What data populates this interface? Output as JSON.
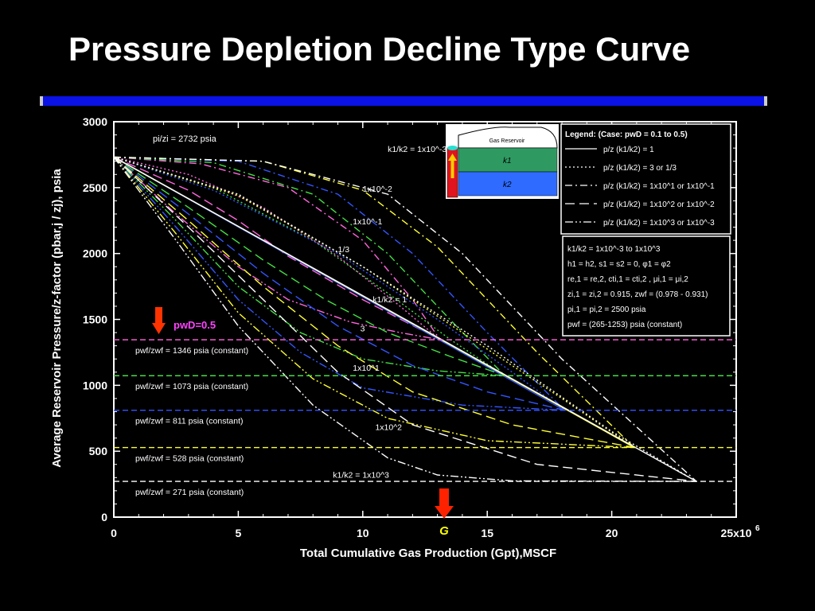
{
  "slide": {
    "title": "Pressure Depletion Decline Type Curve"
  },
  "chart_data": {
    "type": "line",
    "title": "Pressure Depletion Decline Type Curve",
    "xlabel": "Total Cumulative Gas Production (Gpt),MSCF",
    "ylabel": "Average Reservoir Pressure/z-factor (pbar,j / zj), psia",
    "x_unit_multiplier": "x10^6",
    "xlim": [
      0,
      25
    ],
    "ylim": [
      0,
      3000
    ],
    "x_ticks": [
      "0",
      "5",
      "10",
      "15",
      "20",
      "25x10"
    ],
    "x_tick_exponent": "6",
    "y_ticks": [
      "0",
      "500",
      "1000",
      "1500",
      "2000",
      "2500",
      "3000"
    ],
    "g_label": "G",
    "g_value": 13.2,
    "initial_label": "pi/zi = 2732 psia",
    "initial_value": 2732,
    "pwd_label": "pwD=0.5",
    "legend_header": "Legend:  (Case: pwD = 0.1 to 0.5)",
    "legend": [
      {
        "label": "p/z (k1/k2) = 1",
        "dash": "solid"
      },
      {
        "label": "p/z (k1/k2) = 3 or 1/3",
        "dash": "dotted"
      },
      {
        "label": "p/z (k1/k2) = 1x10^1  or 1x10^-1",
        "dash": "dashdot"
      },
      {
        "label": "p/z (k1/k2) = 1x10^2  or 1x10^-2",
        "dash": "dashed"
      },
      {
        "label": "p/z (k1/k2) = 1x10^3  or 1x10^-3",
        "dash": "dashdotdot"
      }
    ],
    "params": [
      "k1/k2 = 1x10^-3  to 1x10^3",
      "h1 = h2, s1 = s2 = 0, φ1 = φ2",
      "re,1 = re,2, cti,1 = cti,2 , μi,1 = μi,2",
      "zi,1 = zi,2 = 0.915, zwf = (0.978 - 0.931)",
      "pi,1 = pi,2 = 2500 psia",
      "pwf = (265-1253) psia (constant)"
    ],
    "inset": {
      "title": "Gas Reservoir",
      "layer1": "k1",
      "layer2": "k2"
    },
    "curve_labels": [
      {
        "text": "k1/k2 = 1x10^-3",
        "x": 11.0,
        "y": 2770
      },
      {
        "text": "1x10^-2",
        "x": 10.0,
        "y": 2470
      },
      {
        "text": "1x10^-1",
        "x": 9.6,
        "y": 2220
      },
      {
        "text": "1/3",
        "x": 9.0,
        "y": 2010
      },
      {
        "text": "k1/k2 = 1",
        "x": 10.4,
        "y": 1630
      },
      {
        "text": "3",
        "x": 9.9,
        "y": 1410
      },
      {
        "text": "1x10^1",
        "x": 9.6,
        "y": 1110
      },
      {
        "text": "1x10^2",
        "x": 10.5,
        "y": 660
      },
      {
        "text": "k1/k2 = 1x10^3",
        "x": 8.8,
        "y": 300
      }
    ],
    "pwf_levels": [
      {
        "label": "pwf/zwf = 1346 psia (constant)",
        "y": 1346,
        "color": "#ff66dd",
        "end_x": 13.1
      },
      {
        "label": "pwf/zwf = 1073 psia (constant)",
        "y": 1073,
        "color": "#44dd44",
        "end_x": 15.7
      },
      {
        "label": "pwf/zwf = 811 psia (constant)",
        "y": 811,
        "color": "#3355ff",
        "end_x": 18.1
      },
      {
        "label": "pwf/zwf = 528 psia (constant)",
        "y": 528,
        "color": "#ffff33",
        "end_x": 20.9
      },
      {
        "label": "pwf/zwf = 271 psia (constant)",
        "y": 271,
        "color": "#ffffff",
        "end_x": 23.4
      }
    ],
    "series": [
      {
        "group": 0,
        "dash": "solid",
        "x": [
          0,
          13.1
        ],
        "y": [
          2732,
          1346
        ]
      },
      {
        "group": 0,
        "dash": "dotted",
        "x": [
          0,
          3.0,
          6.0,
          9.0,
          11.5,
          13.1
        ],
        "y": [
          2732,
          2600,
          2350,
          1980,
          1600,
          1346
        ]
      },
      {
        "group": 0,
        "dash": "dashdot",
        "x": [
          0,
          3.5,
          7.0,
          10.0,
          12.0,
          13.1
        ],
        "y": [
          2732,
          2680,
          2500,
          2100,
          1650,
          1346
        ]
      },
      {
        "group": 0,
        "dash": "dashed",
        "x": [
          0,
          3.0,
          5.0,
          7.0,
          10.0,
          13.1
        ],
        "y": [
          2732,
          2480,
          2250,
          1980,
          1650,
          1346
        ]
      },
      {
        "group": 0,
        "dash": "dashdotdot",
        "x": [
          0,
          2.5,
          5.0,
          7.0,
          9.5,
          11.5,
          13.1
        ],
        "y": [
          2732,
          2300,
          1900,
          1650,
          1480,
          1400,
          1346
        ]
      },
      {
        "group": 1,
        "dash": "solid",
        "x": [
          0,
          15.7
        ],
        "y": [
          2732,
          1073
        ]
      },
      {
        "group": 1,
        "dash": "dotted",
        "x": [
          0,
          4.0,
          8.0,
          11.0,
          13.5,
          15.7
        ],
        "y": [
          2732,
          2500,
          2100,
          1700,
          1350,
          1073
        ]
      },
      {
        "group": 1,
        "dash": "dashdot",
        "x": [
          0,
          4.0,
          8.0,
          11.0,
          13.5,
          15.7
        ],
        "y": [
          2732,
          2690,
          2450,
          2000,
          1500,
          1073
        ]
      },
      {
        "group": 1,
        "dash": "dashed",
        "x": [
          0,
          3.0,
          6.0,
          8.5,
          11.0,
          13.5,
          15.7
        ],
        "y": [
          2732,
          2350,
          1950,
          1650,
          1400,
          1220,
          1073
        ]
      },
      {
        "group": 1,
        "dash": "dashdotdot",
        "x": [
          0,
          2.5,
          5.0,
          7.5,
          10.0,
          13.0,
          15.7
        ],
        "y": [
          2732,
          2250,
          1750,
          1400,
          1200,
          1110,
          1073
        ]
      },
      {
        "group": 2,
        "dash": "solid",
        "x": [
          0,
          18.1
        ],
        "y": [
          2732,
          811
        ]
      },
      {
        "group": 2,
        "dash": "dotted",
        "x": [
          0,
          4.0,
          9.0,
          13.0,
          16.0,
          18.1
        ],
        "y": [
          2732,
          2480,
          2000,
          1500,
          1100,
          811
        ]
      },
      {
        "group": 2,
        "dash": "dashdot",
        "x": [
          0,
          5.0,
          9.0,
          12.0,
          15.0,
          18.1
        ],
        "y": [
          2732,
          2700,
          2450,
          2000,
          1400,
          811
        ]
      },
      {
        "group": 2,
        "dash": "dashed",
        "x": [
          0,
          3.0,
          6.0,
          9.0,
          12.0,
          15.0,
          18.1
        ],
        "y": [
          2732,
          2300,
          1850,
          1450,
          1150,
          950,
          811
        ]
      },
      {
        "group": 2,
        "dash": "dashdotdot",
        "x": [
          0,
          2.5,
          5.0,
          7.5,
          10.0,
          14.0,
          18.1
        ],
        "y": [
          2732,
          2200,
          1650,
          1250,
          980,
          850,
          811
        ]
      },
      {
        "group": 3,
        "dash": "solid",
        "x": [
          0,
          20.9
        ],
        "y": [
          2732,
          528
        ]
      },
      {
        "group": 3,
        "dash": "dotted",
        "x": [
          0,
          5.0,
          10.0,
          14.0,
          18.0,
          20.9
        ],
        "y": [
          2732,
          2440,
          1900,
          1400,
          900,
          528
        ]
      },
      {
        "group": 3,
        "dash": "dashdot",
        "x": [
          0,
          6.0,
          10.0,
          13.0,
          17.0,
          20.9
        ],
        "y": [
          2732,
          2700,
          2480,
          2050,
          1250,
          528
        ]
      },
      {
        "group": 3,
        "dash": "dashed",
        "x": [
          0,
          3.0,
          6.0,
          9.0,
          12.0,
          16.0,
          20.9
        ],
        "y": [
          2732,
          2250,
          1750,
          1300,
          950,
          700,
          528
        ]
      },
      {
        "group": 3,
        "dash": "dashdotdot",
        "x": [
          0,
          2.5,
          5.0,
          8.0,
          11.0,
          15.0,
          20.9
        ],
        "y": [
          2732,
          2150,
          1550,
          1050,
          750,
          580,
          528
        ]
      },
      {
        "group": 4,
        "dash": "solid",
        "x": [
          0,
          23.4
        ],
        "y": [
          2732,
          271
        ]
      },
      {
        "group": 4,
        "dash": "dotted",
        "x": [
          0,
          5.0,
          10.0,
          15.0,
          20.0,
          23.4
        ],
        "y": [
          2732,
          2450,
          1900,
          1300,
          650,
          271
        ]
      },
      {
        "group": 4,
        "dash": "dashdot",
        "x": [
          0,
          6.0,
          11.0,
          14.0,
          18.0,
          23.4
        ],
        "y": [
          2732,
          2700,
          2450,
          2000,
          1200,
          271
        ]
      },
      {
        "group": 4,
        "dash": "dashed",
        "x": [
          0,
          3.0,
          6.0,
          9.0,
          12.0,
          17.0,
          23.4
        ],
        "y": [
          2732,
          2200,
          1650,
          1100,
          700,
          400,
          271
        ]
      },
      {
        "group": 4,
        "dash": "dashdotdot",
        "x": [
          0,
          2.5,
          5.0,
          8.0,
          11.0,
          13.0,
          16.0,
          23.4
        ],
        "y": [
          2732,
          2100,
          1450,
          850,
          450,
          320,
          275,
          271
        ]
      }
    ]
  }
}
